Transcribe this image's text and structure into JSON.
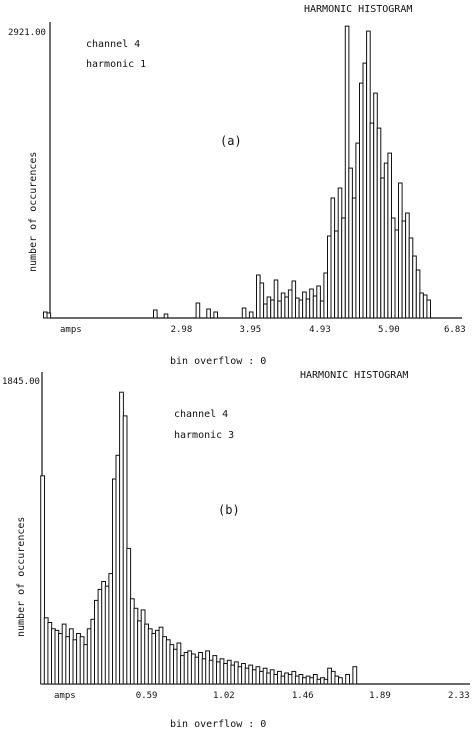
{
  "chart_data": [
    {
      "type": "bar",
      "title": "HARMONIC HISTOGRAM",
      "annotation_lines": [
        "channel 4",
        "harmonic 1"
      ],
      "panel_label": "(a)",
      "ylabel": "number of occurences",
      "xlabel": "bin overflow : 0",
      "x_unit_label": "amps",
      "y_max_label": "2921.00",
      "ylim": [
        0,
        2921
      ],
      "xlim": [
        1.0,
        6.83
      ],
      "xticks": [
        "2.98",
        "3.95",
        "4.93",
        "5.90",
        "6.83"
      ],
      "xtick_values": [
        2.98,
        3.95,
        4.93,
        5.9,
        6.83
      ],
      "x": [
        1.05,
        1.1,
        2.6,
        2.75,
        3.2,
        3.35,
        3.45,
        3.85,
        3.95,
        4.05,
        4.1,
        4.15,
        4.2,
        4.25,
        4.3,
        4.35,
        4.4,
        4.45,
        4.5,
        4.55,
        4.6,
        4.65,
        4.7,
        4.75,
        4.8,
        4.85,
        4.9,
        4.95,
        5.0,
        5.05,
        5.1,
        5.15,
        5.2,
        5.25,
        5.3,
        5.35,
        5.4,
        5.45,
        5.5,
        5.55,
        5.6,
        5.65,
        5.7,
        5.75,
        5.8,
        5.85,
        5.9,
        5.95,
        6.0,
        6.05,
        6.1,
        6.15,
        6.2,
        6.25,
        6.3,
        6.35,
        6.4,
        6.45
      ],
      "values": [
        60,
        50,
        80,
        40,
        150,
        90,
        60,
        100,
        60,
        430,
        350,
        140,
        210,
        180,
        380,
        170,
        250,
        210,
        280,
        370,
        200,
        180,
        260,
        190,
        290,
        220,
        320,
        170,
        450,
        820,
        1200,
        870,
        1300,
        1000,
        2920,
        1500,
        1200,
        1750,
        2350,
        2550,
        2870,
        1950,
        2250,
        1900,
        1400,
        1550,
        1650,
        1000,
        880,
        1350,
        970,
        1050,
        800,
        620,
        480,
        250,
        230,
        180
      ]
    },
    {
      "type": "bar",
      "title": "HARMONIC HISTOGRAM",
      "annotation_lines": [
        "channel 4",
        "harmonic 3"
      ],
      "panel_label": "(b)",
      "ylabel": "number of occurences",
      "xlabel": "bin overflow : 0",
      "x_unit_label": "amps",
      "y_max_label": "1845.00",
      "ylim": [
        0,
        1845
      ],
      "xlim": [
        0.0,
        2.33
      ],
      "xticks": [
        "0.59",
        "1.02",
        "1.46",
        "1.89",
        "2.33"
      ],
      "xtick_values": [
        0.59,
        1.02,
        1.46,
        1.89,
        2.33
      ],
      "x": [
        0.005,
        0.025,
        0.045,
        0.065,
        0.085,
        0.105,
        0.125,
        0.145,
        0.165,
        0.185,
        0.205,
        0.225,
        0.245,
        0.265,
        0.285,
        0.305,
        0.325,
        0.345,
        0.365,
        0.385,
        0.405,
        0.425,
        0.445,
        0.465,
        0.485,
        0.505,
        0.525,
        0.545,
        0.565,
        0.585,
        0.605,
        0.625,
        0.645,
        0.665,
        0.685,
        0.705,
        0.725,
        0.745,
        0.765,
        0.785,
        0.805,
        0.825,
        0.845,
        0.865,
        0.885,
        0.905,
        0.925,
        0.945,
        0.965,
        0.985,
        1.005,
        1.025,
        1.045,
        1.065,
        1.085,
        1.105,
        1.125,
        1.145,
        1.165,
        1.185,
        1.205,
        1.225,
        1.245,
        1.265,
        1.285,
        1.305,
        1.325,
        1.345,
        1.365,
        1.385,
        1.405,
        1.425,
        1.445,
        1.465,
        1.485,
        1.505,
        1.525,
        1.545,
        1.565,
        1.585,
        1.605,
        1.625,
        1.645,
        1.665,
        1.705,
        1.745
      ],
      "values": [
        1320,
        420,
        390,
        350,
        340,
        320,
        380,
        300,
        350,
        280,
        320,
        300,
        250,
        350,
        410,
        530,
        600,
        650,
        620,
        700,
        1300,
        1450,
        1850,
        1700,
        860,
        540,
        480,
        400,
        470,
        380,
        350,
        320,
        340,
        360,
        300,
        280,
        250,
        220,
        260,
        180,
        200,
        210,
        190,
        170,
        200,
        160,
        210,
        150,
        180,
        140,
        160,
        130,
        150,
        120,
        140,
        110,
        130,
        100,
        120,
        90,
        110,
        80,
        100,
        70,
        90,
        60,
        80,
        50,
        70,
        60,
        80,
        50,
        60,
        40,
        50,
        40,
        60,
        30,
        40,
        30,
        100,
        80,
        50,
        40,
        60,
        110
      ]
    }
  ]
}
